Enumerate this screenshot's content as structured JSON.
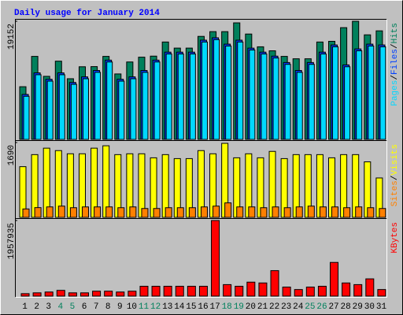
{
  "chart_data": [
    {
      "type": "bar",
      "title": "Daily usage for January 2014",
      "ylim": [
        0,
        19152
      ],
      "yticks": [
        19152
      ],
      "legend_separator": "/",
      "series": [
        {
          "name": "Hits",
          "color": "#00805c",
          "values": [
            8541,
            13458,
            10223,
            12682,
            9835,
            11776,
            11800,
            13458,
            10611,
            12552,
            13329,
            13500,
            15788,
            14800,
            14800,
            16700,
            17470,
            17470,
            18893,
            17082,
            15011,
            14364,
            13458,
            13070,
            13070,
            15788,
            15900,
            18117,
            19152,
            16952,
            17599
          ]
        },
        {
          "name": "Files",
          "color": "#0040ff",
          "values": [
            7288,
            10782,
            9747,
            10782,
            9229,
            10135,
            11170,
            12852,
            9747,
            10135,
            11170,
            12852,
            14146,
            14146,
            14146,
            16088,
            16476,
            15441,
            16088,
            14794,
            14146,
            13499,
            12464,
            11170,
            12464,
            14146,
            15311,
            12076,
            14664,
            15441,
            15311
          ]
        },
        {
          "name": "Pages",
          "color": "#00d8ff",
          "values": [
            6988,
            10482,
            9447,
            10482,
            8929,
            9835,
            10870,
            12552,
            9447,
            9835,
            10870,
            12552,
            13846,
            13846,
            13846,
            15788,
            16176,
            15141,
            15788,
            14494,
            13846,
            13199,
            12164,
            10870,
            12164,
            13846,
            15011,
            11776,
            14364,
            15141,
            15011
          ]
        }
      ]
    },
    {
      "type": "bar",
      "ylim": [
        0,
        1690
      ],
      "yticks": [
        1690
      ],
      "legend_separator": "/",
      "series": [
        {
          "name": "Visits",
          "color": "#ffff00",
          "values": [
            1145,
            1417,
            1563,
            1508,
            1436,
            1436,
            1563,
            1617,
            1417,
            1436,
            1436,
            1345,
            1417,
            1327,
            1327,
            1508,
            1436,
            1672,
            1345,
            1436,
            1345,
            1490,
            1327,
            1417,
            1417,
            1417,
            1345,
            1417,
            1417,
            1254,
            890
          ]
        },
        {
          "name": "Sites",
          "color": "#ff8000",
          "values": [
            190,
            220,
            236,
            254,
            218,
            236,
            236,
            236,
            218,
            236,
            200,
            200,
            218,
            218,
            218,
            236,
            254,
            327,
            236,
            236,
            218,
            236,
            218,
            236,
            254,
            236,
            236,
            218,
            236,
            218,
            200
          ]
        }
      ]
    },
    {
      "type": "bar",
      "ylim": [
        0,
        1957935
      ],
      "yticks": [
        1957935
      ],
      "categories": [
        "1",
        "2",
        "3",
        "4",
        "5",
        "6",
        "7",
        "8",
        "9",
        "10",
        "11",
        "12",
        "13",
        "14",
        "15",
        "16",
        "17",
        "18",
        "19",
        "20",
        "21",
        "22",
        "23",
        "24",
        "25",
        "26",
        "27",
        "28",
        "29",
        "30",
        "31"
      ],
      "category_colors": [
        "#000000",
        "#000000",
        "#000000",
        "#00805c",
        "#00805c",
        "#000000",
        "#000000",
        "#000000",
        "#000000",
        "#000000",
        "#00805c",
        "#00805c",
        "#000000",
        "#000000",
        "#000000",
        "#000000",
        "#000000",
        "#00805c",
        "#00805c",
        "#000000",
        "#000000",
        "#000000",
        "#000000",
        "#000000",
        "#00805c",
        "#00805c",
        "#000000",
        "#000000",
        "#000000",
        "#000000",
        "#000000"
      ],
      "series": [
        {
          "name": "KBytes",
          "color": "#ff0000",
          "values": [
            63847,
            85128,
            106410,
            148974,
            85128,
            85128,
            127692,
            127692,
            106410,
            127692,
            255384,
            255384,
            255384,
            255384,
            255384,
            255384,
            1957935,
            297948,
            255384,
            361794,
            340512,
            659742,
            234102,
            170256,
            234102,
            255384,
            872562,
            340512,
            297948,
            446922,
            170256
          ]
        }
      ]
    }
  ]
}
